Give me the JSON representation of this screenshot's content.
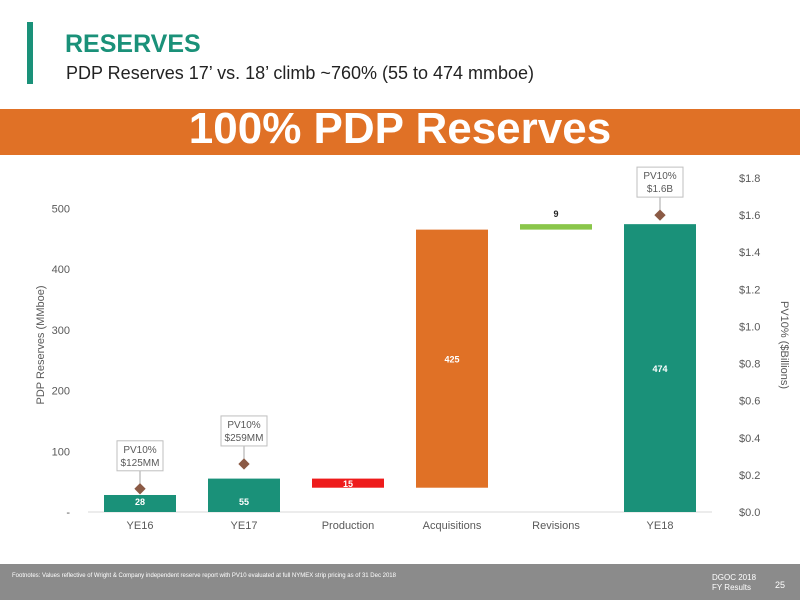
{
  "header": {
    "title": "RESERVES",
    "subtitle": "PDP Reserves 17’ vs. 18’ climb ~760% (55 to 474 mmboe)"
  },
  "banner": {
    "text": "100% PDP Reserves",
    "color": "#e07126"
  },
  "colors": {
    "teal": "#1a9179",
    "orange": "#e07126",
    "red": "#ee1b1b",
    "green": "#8ac64a"
  },
  "chart_data": {
    "type": "bar",
    "subtype": "waterfall",
    "categories": [
      "YE16",
      "YE17",
      "Production",
      "Acquisitions",
      "Revisions",
      "YE18"
    ],
    "bars": [
      {
        "category": "YE16",
        "base": 0,
        "value": 28,
        "label": "28",
        "color": "#1a9179",
        "label_color": "#ffffff"
      },
      {
        "category": "YE17",
        "base": 0,
        "value": 55,
        "label": "55",
        "color": "#1a9179",
        "label_color": "#ffffff"
      },
      {
        "category": "Production",
        "base": 40,
        "value": 15,
        "label": "15",
        "color": "#ee1b1b",
        "label_color": "#ffffff"
      },
      {
        "category": "Acquisitions",
        "base": 40,
        "value": 425,
        "label": "425",
        "color": "#e07126",
        "label_color": "#ffffff"
      },
      {
        "category": "Revisions",
        "base": 465,
        "value": 9,
        "label": "9",
        "color": "#8ac64a",
        "label_color": "#222222"
      },
      {
        "category": "YE18",
        "base": 0,
        "value": 474,
        "label": "474",
        "color": "#1a9179",
        "label_color": "#ffffff"
      }
    ],
    "ylabel": "PDP Reserves (MMboe)",
    "ylim": [
      0,
      550
    ],
    "yticks": [
      0,
      100,
      200,
      300,
      400,
      500
    ],
    "ytick_labels": [
      "-",
      "100",
      "200",
      "300",
      "400",
      "500"
    ],
    "y2label": "PV10% ($Billions)",
    "y2lim": [
      0,
      1.8
    ],
    "y2ticks": [
      0,
      0.2,
      0.4,
      0.6,
      0.8,
      1.0,
      1.2,
      1.4,
      1.6,
      1.8
    ],
    "y2tick_labels": [
      "$0.0",
      "$0.2",
      "$0.4",
      "$0.6",
      "$0.8",
      "$1.0",
      "$1.2",
      "$1.4",
      "$1.6",
      "$1.8"
    ],
    "pv10_markers": [
      {
        "category": "YE16",
        "value": 0.125,
        "label_line1": "PV10%",
        "label_line2": "$125MM"
      },
      {
        "category": "YE17",
        "value": 0.259,
        "label_line1": "PV10%",
        "label_line2": "$259MM"
      },
      {
        "category": "YE18",
        "value": 1.6,
        "label_line1": "PV10%",
        "label_line2": "$1.6B"
      }
    ],
    "grid": false,
    "legend": "none"
  },
  "footer": {
    "footnote": "Footnotes: Values reflective of Wright & Company independent reserve report with PV10 evaluated at full NYMEX strip pricing as of 31 Dec 2018",
    "brand_line1": "DGOC 2018",
    "brand_line2": "FY Results",
    "page_number": "25"
  }
}
